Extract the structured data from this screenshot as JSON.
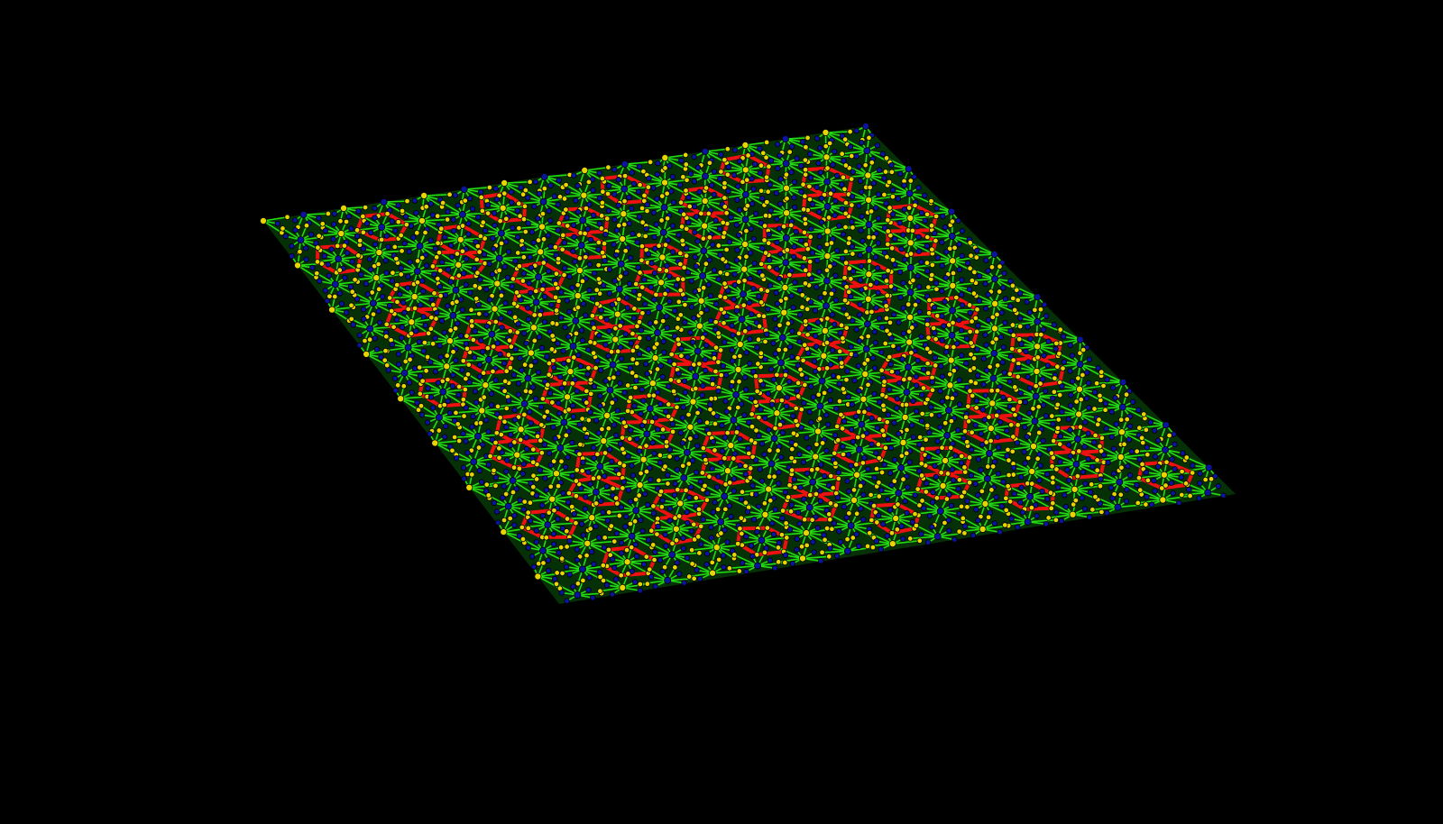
{
  "scene": {
    "background": "#000000",
    "colors": {
      "spoke_bonds": "#22dd11",
      "ring_bonds": "#ee1111",
      "atom_yellow": "#e8d400",
      "atom_blue": "#0a14a0"
    }
  }
}
